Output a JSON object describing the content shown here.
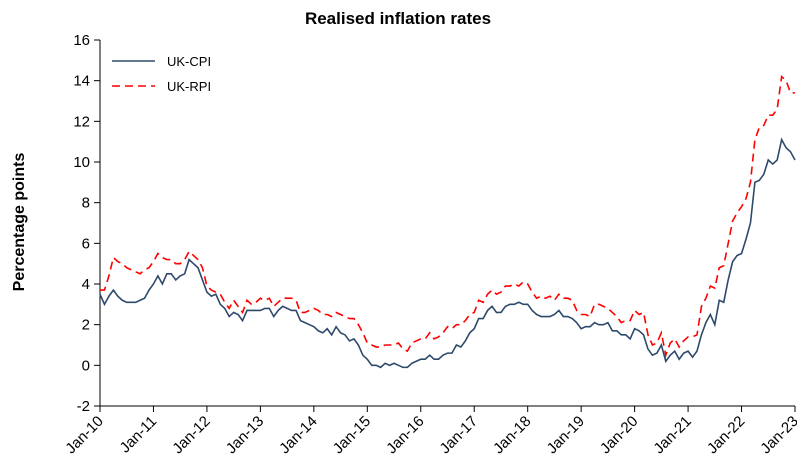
{
  "chart_data": {
    "type": "line",
    "title": "Realised inflation rates",
    "y_label": "Percentage points",
    "categories": [
      "Jan-10",
      null,
      null,
      null,
      null,
      null,
      null,
      null,
      null,
      null,
      null,
      null,
      "Jan-11",
      null,
      null,
      null,
      null,
      null,
      null,
      null,
      null,
      null,
      null,
      null,
      "Jan-12",
      null,
      null,
      null,
      null,
      null,
      null,
      null,
      null,
      null,
      null,
      null,
      "Jan-13",
      null,
      null,
      null,
      null,
      null,
      null,
      null,
      null,
      null,
      null,
      null,
      "Jan-14",
      null,
      null,
      null,
      null,
      null,
      null,
      null,
      null,
      null,
      null,
      null,
      "Jan-15",
      null,
      null,
      null,
      null,
      null,
      null,
      null,
      null,
      null,
      null,
      null,
      "Jan-16",
      null,
      null,
      null,
      null,
      null,
      null,
      null,
      null,
      null,
      null,
      null,
      "Jan-17",
      null,
      null,
      null,
      null,
      null,
      null,
      null,
      null,
      null,
      null,
      null,
      "Jan-18",
      null,
      null,
      null,
      null,
      null,
      null,
      null,
      null,
      null,
      null,
      null,
      "Jan-19",
      null,
      null,
      null,
      null,
      null,
      null,
      null,
      null,
      null,
      null,
      null,
      "Jan-20",
      null,
      null,
      null,
      null,
      null,
      null,
      null,
      null,
      null,
      null,
      null,
      "Jan-21",
      null,
      null,
      null,
      null,
      null,
      null,
      null,
      null,
      null,
      null,
      null,
      "Jan-22",
      null,
      null,
      null,
      null,
      null,
      null,
      null,
      null,
      null,
      null,
      null,
      "Jan-23"
    ],
    "series": [
      {
        "name": "UK-CPI",
        "color": "#2e4a6b",
        "dash": false,
        "values": [
          3.5,
          3.0,
          3.4,
          3.7,
          3.4,
          3.2,
          3.1,
          3.1,
          3.1,
          3.2,
          3.3,
          3.7,
          4.0,
          4.4,
          4.0,
          4.5,
          4.5,
          4.2,
          4.4,
          4.5,
          5.2,
          5.0,
          4.8,
          4.2,
          3.6,
          3.4,
          3.5,
          3.0,
          2.8,
          2.4,
          2.6,
          2.5,
          2.2,
          2.7,
          2.7,
          2.7,
          2.7,
          2.8,
          2.8,
          2.4,
          2.7,
          2.9,
          2.8,
          2.7,
          2.7,
          2.2,
          2.1,
          2.0,
          1.9,
          1.7,
          1.6,
          1.8,
          1.5,
          1.9,
          1.6,
          1.5,
          1.2,
          1.3,
          1.0,
          0.5,
          0.3,
          0.0,
          0.0,
          -0.1,
          0.1,
          0.0,
          0.1,
          0.0,
          -0.1,
          -0.1,
          0.1,
          0.2,
          0.3,
          0.3,
          0.5,
          0.3,
          0.3,
          0.5,
          0.6,
          0.6,
          1.0,
          0.9,
          1.2,
          1.6,
          1.8,
          2.3,
          2.3,
          2.7,
          2.9,
          2.6,
          2.6,
          2.9,
          3.0,
          3.0,
          3.1,
          3.0,
          3.0,
          2.7,
          2.5,
          2.4,
          2.4,
          2.4,
          2.5,
          2.7,
          2.4,
          2.4,
          2.3,
          2.1,
          1.8,
          1.9,
          1.9,
          2.1,
          2.0,
          2.0,
          2.1,
          1.7,
          1.7,
          1.5,
          1.5,
          1.3,
          1.8,
          1.7,
          1.5,
          0.8,
          0.5,
          0.6,
          1.0,
          0.2,
          0.5,
          0.7,
          0.3,
          0.6,
          0.7,
          0.4,
          0.7,
          1.5,
          2.1,
          2.5,
          2.0,
          3.2,
          3.1,
          4.2,
          5.1,
          5.4,
          5.5,
          6.2,
          7.0,
          9.0,
          9.1,
          9.4,
          10.1,
          9.9,
          10.1,
          11.1,
          10.7,
          10.5,
          10.1
        ]
      },
      {
        "name": "UK-RPI",
        "color": "#ff0000",
        "dash": true,
        "values": [
          3.7,
          3.7,
          4.4,
          5.3,
          5.1,
          5.0,
          4.8,
          4.7,
          4.6,
          4.5,
          4.7,
          4.8,
          5.1,
          5.5,
          5.3,
          5.2,
          5.2,
          5.0,
          5.0,
          5.2,
          5.6,
          5.4,
          5.2,
          4.8,
          3.9,
          3.7,
          3.6,
          3.5,
          3.1,
          2.8,
          3.2,
          2.9,
          2.6,
          3.2,
          3.0,
          3.1,
          3.3,
          3.2,
          3.3,
          2.9,
          3.1,
          3.3,
          3.3,
          3.3,
          3.2,
          2.6,
          2.6,
          2.7,
          2.8,
          2.7,
          2.5,
          2.5,
          2.4,
          2.6,
          2.5,
          2.4,
          2.3,
          2.3,
          2.0,
          1.6,
          1.1,
          1.0,
          0.9,
          0.9,
          1.0,
          1.0,
          1.0,
          1.1,
          0.8,
          0.7,
          1.1,
          1.2,
          1.3,
          1.3,
          1.6,
          1.3,
          1.4,
          1.6,
          1.9,
          1.8,
          2.0,
          2.0,
          2.2,
          2.5,
          2.6,
          3.2,
          3.1,
          3.5,
          3.7,
          3.5,
          3.6,
          3.9,
          3.9,
          4.0,
          3.9,
          4.1,
          4.0,
          3.6,
          3.3,
          3.4,
          3.3,
          3.4,
          3.2,
          3.5,
          3.3,
          3.3,
          3.2,
          2.7,
          2.5,
          2.5,
          2.4,
          3.0,
          3.0,
          2.9,
          2.8,
          2.6,
          2.4,
          2.1,
          2.2,
          2.2,
          2.7,
          2.5,
          2.6,
          1.5,
          1.0,
          1.1,
          1.6,
          0.5,
          1.1,
          1.3,
          0.9,
          1.2,
          1.4,
          1.4,
          1.5,
          2.9,
          3.3,
          3.9,
          3.8,
          4.8,
          4.9,
          6.0,
          7.1,
          7.5,
          7.8,
          8.2,
          9.0,
          11.1,
          11.7,
          11.8,
          12.3,
          12.3,
          12.6,
          14.2,
          14.0,
          13.4,
          13.4
        ]
      }
    ],
    "ylim": [
      -2,
      16
    ],
    "yticks": [
      -2,
      0,
      2,
      4,
      6,
      8,
      10,
      12,
      14,
      16
    ],
    "grid": false,
    "legend": "upper left"
  }
}
